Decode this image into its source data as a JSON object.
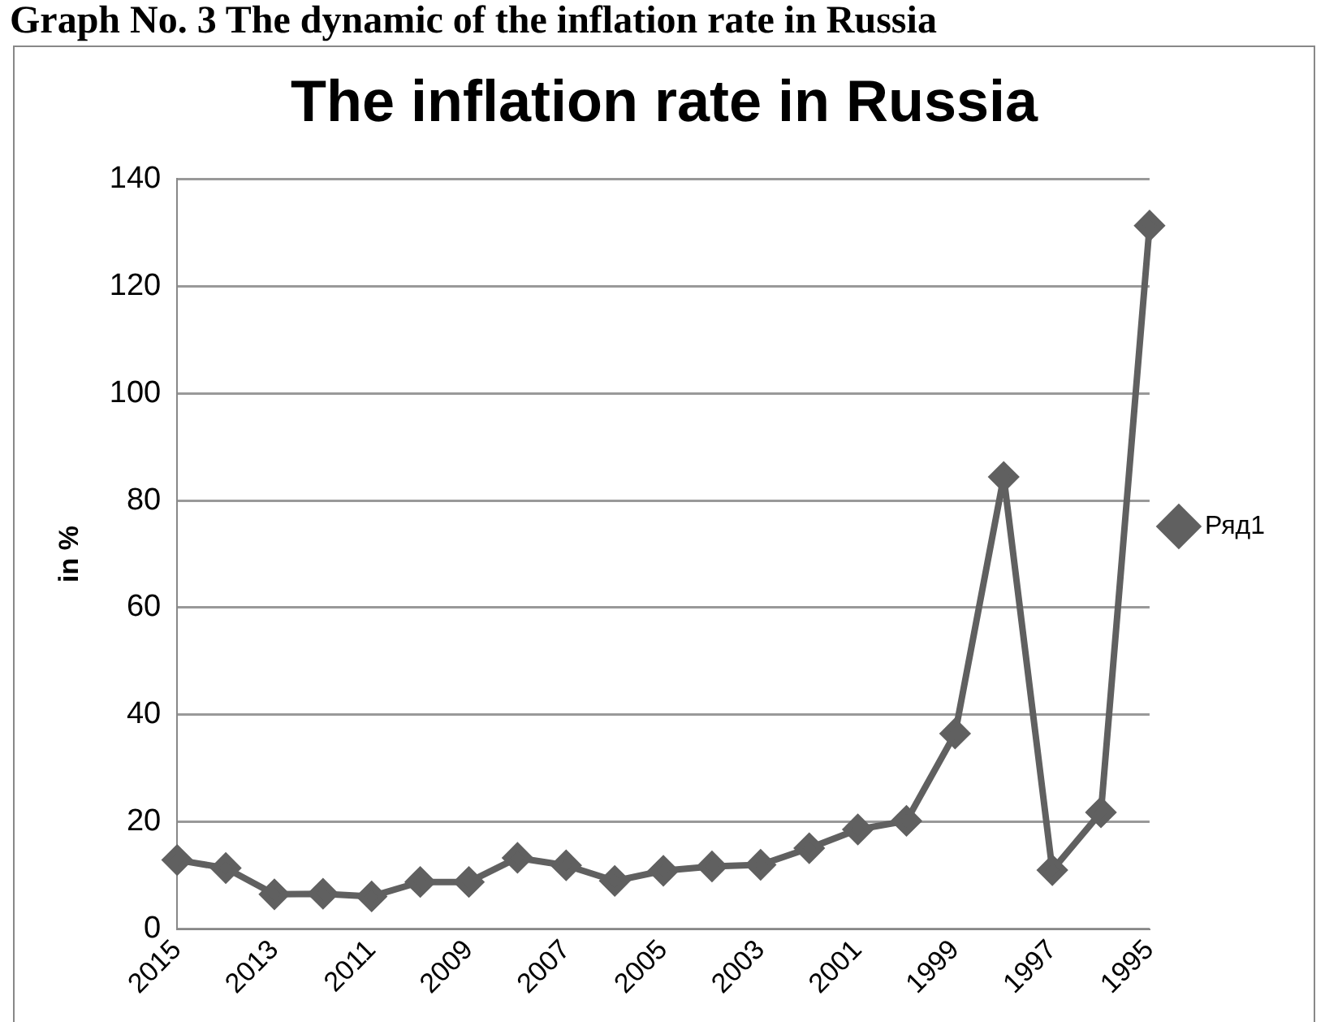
{
  "chart_data": {
    "type": "line",
    "title": "The inflation rate in Russia",
    "ylabel": "in %",
    "annotations": [
      "Graph No. 3 The dynamic of the inflation rate in Russia"
    ],
    "categories": [
      "2015",
      null,
      "2013",
      null,
      "2011",
      null,
      "2009",
      null,
      "2007",
      null,
      "2005",
      null,
      "2003",
      null,
      "2001",
      null,
      "1999",
      null,
      "1997",
      null,
      "1995"
    ],
    "series": [
      {
        "name": "Ряд1",
        "color": "#606060",
        "values": [
          12.9,
          11.4,
          6.5,
          6.6,
          6.1,
          8.8,
          8.8,
          13.3,
          11.9,
          9.0,
          10.9,
          11.7,
          12.0,
          15.1,
          18.6,
          20.2,
          36.5,
          84.4,
          11.0,
          21.8,
          131.3
        ]
      }
    ],
    "ylim": [
      0,
      140
    ],
    "yticks": [
      0,
      20,
      40,
      60,
      80,
      100,
      120,
      140
    ],
    "grid": "y",
    "legend": "right",
    "marker": "diamond",
    "line_style": "solid"
  }
}
